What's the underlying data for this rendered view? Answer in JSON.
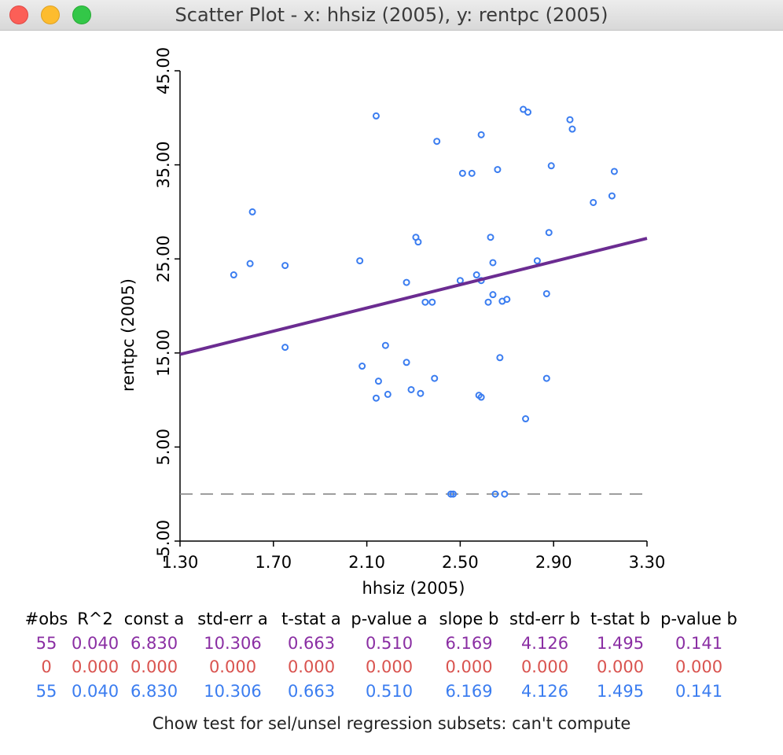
{
  "window": {
    "title": "Scatter Plot - x: hhsiz (2005), y: rentpc (2005)"
  },
  "chart_data": {
    "type": "scatter",
    "title": "",
    "xlabel": "hhsiz (2005)",
    "ylabel": "rentpc (2005)",
    "xlim": [
      1.3,
      3.3
    ],
    "ylim": [
      -5,
      45
    ],
    "x_ticks": [
      "1.30",
      "1.70",
      "2.10",
      "2.50",
      "2.90",
      "3.30"
    ],
    "y_ticks": [
      "-5.00",
      "5.00",
      "15.00",
      "25.00",
      "35.00",
      "45.00"
    ],
    "points": [
      [
        1.53,
        23.3
      ],
      [
        1.6,
        24.5
      ],
      [
        1.61,
        30.0
      ],
      [
        1.75,
        24.3
      ],
      [
        1.75,
        15.6
      ],
      [
        2.07,
        24.8
      ],
      [
        2.08,
        13.6
      ],
      [
        2.14,
        40.2
      ],
      [
        2.14,
        10.2
      ],
      [
        2.15,
        12.0
      ],
      [
        2.18,
        15.8
      ],
      [
        2.19,
        10.6
      ],
      [
        2.27,
        22.5
      ],
      [
        2.27,
        14.0
      ],
      [
        2.29,
        11.1
      ],
      [
        2.31,
        27.3
      ],
      [
        2.32,
        26.8
      ],
      [
        2.33,
        10.7
      ],
      [
        2.35,
        20.4
      ],
      [
        2.38,
        20.4
      ],
      [
        2.39,
        12.3
      ],
      [
        2.4,
        37.5
      ],
      [
        2.46,
        0.0
      ],
      [
        2.47,
        0.0
      ],
      [
        2.5,
        22.7
      ],
      [
        2.51,
        34.1
      ],
      [
        2.55,
        34.1
      ],
      [
        2.57,
        23.3
      ],
      [
        2.58,
        10.5
      ],
      [
        2.59,
        10.3
      ],
      [
        2.59,
        22.7
      ],
      [
        2.59,
        38.2
      ],
      [
        2.62,
        20.4
      ],
      [
        2.63,
        27.3
      ],
      [
        2.64,
        21.2
      ],
      [
        2.64,
        24.6
      ],
      [
        2.65,
        0.0
      ],
      [
        2.66,
        34.5
      ],
      [
        2.67,
        14.5
      ],
      [
        2.68,
        20.5
      ],
      [
        2.69,
        0.0
      ],
      [
        2.7,
        20.7
      ],
      [
        2.77,
        40.9
      ],
      [
        2.78,
        8.0
      ],
      [
        2.79,
        40.6
      ],
      [
        2.83,
        24.8
      ],
      [
        2.87,
        12.3
      ],
      [
        2.87,
        21.3
      ],
      [
        2.88,
        27.8
      ],
      [
        2.89,
        34.9
      ],
      [
        2.97,
        39.8
      ],
      [
        2.98,
        38.8
      ],
      [
        3.07,
        31.0
      ],
      [
        3.15,
        31.7
      ],
      [
        3.16,
        34.3
      ]
    ],
    "regression_line": {
      "intercept": 6.83,
      "slope": 6.169,
      "color": "#6b2c91"
    },
    "zero_line_y": 0,
    "point_color": "#3b7df0"
  },
  "stats_table": {
    "headers": [
      "#obs",
      "R^2",
      "const a",
      "std-err a",
      "t-stat a",
      "p-value a",
      "slope b",
      "std-err b",
      "t-stat b",
      "p-value b"
    ],
    "rows": [
      [
        "55",
        "0.040",
        "6.830",
        "10.306",
        "0.663",
        "0.510",
        "6.169",
        "4.126",
        "1.495",
        "0.141"
      ],
      [
        "0",
        "0.000",
        "0.000",
        "0.000",
        "0.000",
        "0.000",
        "0.000",
        "0.000",
        "0.000",
        "0.000"
      ],
      [
        "55",
        "0.040",
        "6.830",
        "10.306",
        "0.663",
        "0.510",
        "6.169",
        "4.126",
        "1.495",
        "0.141"
      ]
    ],
    "row_colors": [
      "#8a2ea3",
      "#d9534f",
      "#3b7df0"
    ]
  },
  "chow_text": "Chow test for sel/unsel regression subsets: can't compute"
}
